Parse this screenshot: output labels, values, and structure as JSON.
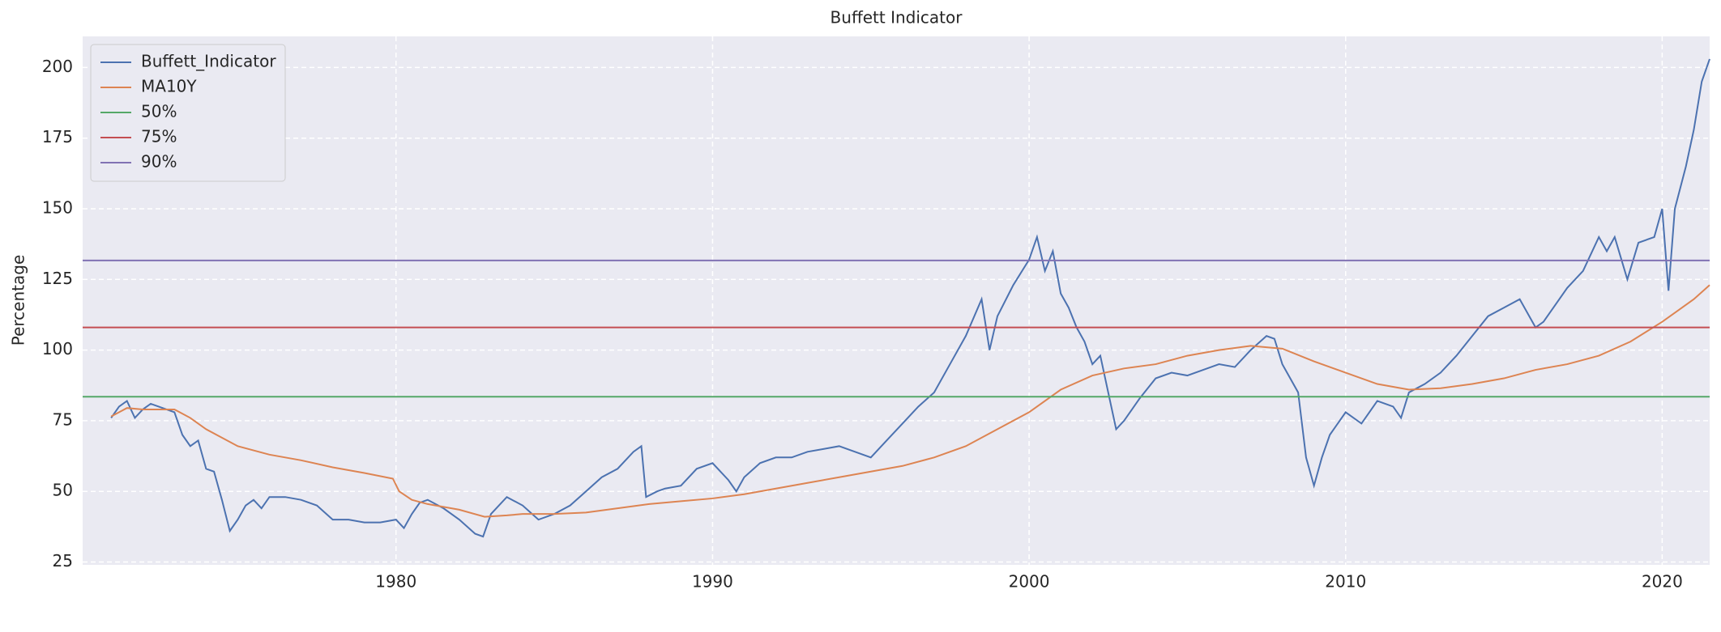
{
  "chart_data": {
    "type": "line",
    "title": "Buffett Indicator",
    "y_label": "Percentage",
    "xlim": [
      1970.1,
      2021.5
    ],
    "ylim": [
      24,
      211
    ],
    "xticks": [
      1980,
      1990,
      2000,
      2010,
      2020
    ],
    "yticks": [
      25,
      50,
      75,
      100,
      125,
      150,
      175,
      200
    ],
    "grid": true,
    "legend": "upper left",
    "series": [
      {
        "name": "Buffett_Indicator",
        "color": "#4c72b0",
        "x": [
          1971.0,
          1971.25,
          1971.5,
          1971.75,
          1972.0,
          1972.25,
          1972.5,
          1972.75,
          1973.0,
          1973.25,
          1973.5,
          1973.75,
          1974.0,
          1974.25,
          1974.5,
          1974.75,
          1975.0,
          1975.25,
          1975.5,
          1975.75,
          1976.0,
          1976.5,
          1977.0,
          1977.5,
          1978.0,
          1978.5,
          1979.0,
          1979.5,
          1980.0,
          1980.25,
          1980.5,
          1980.75,
          1981.0,
          1981.5,
          1982.0,
          1982.5,
          1982.75,
          1983.0,
          1983.5,
          1984.0,
          1984.5,
          1985.0,
          1985.5,
          1986.0,
          1986.5,
          1987.0,
          1987.5,
          1987.75,
          1987.9,
          1988.25,
          1988.5,
          1989.0,
          1989.5,
          1990.0,
          1990.5,
          1990.75,
          1991.0,
          1991.5,
          1992.0,
          1992.5,
          1993.0,
          1993.5,
          1994.0,
          1994.5,
          1995.0,
          1995.5,
          1996.0,
          1996.5,
          1997.0,
          1997.5,
          1998.0,
          1998.5,
          1998.75,
          1999.0,
          1999.5,
          2000.0,
          2000.25,
          2000.5,
          2000.75,
          2001.0,
          2001.25,
          2001.5,
          2001.75,
          2002.0,
          2002.25,
          2002.5,
          2002.75,
          2003.0,
          2003.5,
          2004.0,
          2004.5,
          2005.0,
          2005.5,
          2006.0,
          2006.5,
          2007.0,
          2007.5,
          2007.75,
          2008.0,
          2008.5,
          2008.75,
          2009.0,
          2009.25,
          2009.5,
          2010.0,
          2010.5,
          2011.0,
          2011.5,
          2011.75,
          2012.0,
          2012.5,
          2013.0,
          2013.5,
          2014.0,
          2014.5,
          2015.0,
          2015.5,
          2016.0,
          2016.25,
          2016.5,
          2017.0,
          2017.5,
          2018.0,
          2018.25,
          2018.5,
          2018.9,
          2019.25,
          2019.75,
          2020.0,
          2020.2,
          2020.4,
          2020.75,
          2021.0,
          2021.25,
          2021.5
        ],
        "values": [
          76,
          80,
          82,
          76,
          79,
          81,
          80,
          79,
          78,
          70,
          66,
          68,
          58,
          57,
          47,
          36,
          40,
          45,
          47,
          44,
          48,
          48,
          47,
          45,
          40,
          40,
          39,
          39,
          40,
          37,
          42,
          46,
          47,
          44,
          40,
          35,
          34,
          42,
          48,
          45,
          40,
          42,
          45,
          50,
          55,
          58,
          64,
          66,
          48,
          50,
          51,
          52,
          58,
          60,
          54,
          50,
          55,
          60,
          62,
          62,
          64,
          65,
          66,
          64,
          62,
          68,
          74,
          80,
          85,
          95,
          105,
          118,
          100,
          112,
          123,
          132,
          140,
          128,
          135,
          120,
          115,
          108,
          103,
          95,
          98,
          85,
          72,
          75,
          83,
          90,
          92,
          91,
          93,
          95,
          94,
          100,
          105,
          104,
          95,
          85,
          62,
          52,
          62,
          70,
          78,
          74,
          82,
          80,
          76,
          85,
          88,
          92,
          98,
          105,
          112,
          115,
          118,
          108,
          110,
          114,
          122,
          128,
          140,
          135,
          140,
          125,
          138,
          140,
          150,
          121,
          150,
          165,
          178,
          195,
          203
        ]
      },
      {
        "name": "MA10Y",
        "color": "#dd8452",
        "x": [
          1971.0,
          1971.5,
          1972.0,
          1973.0,
          1973.5,
          1974.0,
          1975.0,
          1976.0,
          1977.0,
          1978.0,
          1979.0,
          1979.9,
          1980.1,
          1980.5,
          1981.0,
          1982.0,
          1982.8,
          1983.5,
          1984.0,
          1985.0,
          1986.0,
          1987.0,
          1988.0,
          1989.0,
          1990.0,
          1991.0,
          1992.0,
          1993.0,
          1994.0,
          1995.0,
          1996.0,
          1997.0,
          1998.0,
          1999.0,
          2000.0,
          2001.0,
          2002.0,
          2003.0,
          2004.0,
          2005.0,
          2006.0,
          2007.0,
          2008.0,
          2009.0,
          2010.0,
          2011.0,
          2012.0,
          2013.0,
          2014.0,
          2015.0,
          2016.0,
          2017.0,
          2018.0,
          2019.0,
          2020.0,
          2021.0,
          2021.5
        ],
        "values": [
          76.5,
          79.5,
          79,
          79,
          76,
          72,
          66,
          63,
          61,
          58.5,
          56.5,
          54.5,
          50,
          47,
          45.5,
          43.5,
          41,
          41.5,
          42,
          42,
          42.5,
          44,
          45.5,
          46.5,
          47.5,
          49,
          51,
          53,
          55,
          57,
          59,
          62,
          66,
          72,
          78,
          86,
          91,
          93.5,
          95,
          98,
          100,
          101.5,
          100.5,
          96,
          92,
          88,
          86,
          86.5,
          88,
          90,
          93,
          95,
          98,
          103,
          110,
          118,
          123
        ]
      }
    ],
    "hlines": [
      {
        "name": "50%",
        "color": "#55a868",
        "value": 83.5
      },
      {
        "name": "75%",
        "color": "#c44e52",
        "value": 108
      },
      {
        "name": "90%",
        "color": "#8172b3",
        "value": 131.7
      }
    ]
  }
}
